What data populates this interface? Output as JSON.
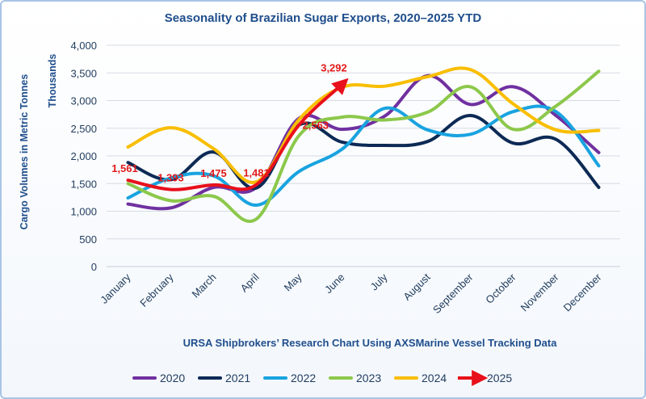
{
  "chart_data": {
    "type": "line",
    "title": "Seasonality of Brazilian Sugar Exports, 2020–2025 YTD",
    "xlabel": "URSA Shipbrokers’ Research Chart Using AXSMarine Vessel Tracking Data",
    "ylabel": "Cargo Volumes in Metric Tonnes",
    "yunit": "Thousands",
    "ylim": [
      0,
      4000
    ],
    "yticks": [
      "0",
      "500",
      "1,000",
      "1,500",
      "2,000",
      "2,500",
      "3,000",
      "3,500",
      "4,000"
    ],
    "grid": true,
    "legend_position": "bottom",
    "categories": [
      "January",
      "February",
      "March",
      "April",
      "May",
      "June",
      "July",
      "August",
      "September",
      "October",
      "November",
      "December"
    ],
    "series": [
      {
        "name": "2020",
        "color": "#7030a0",
        "values": [
          1130,
          1060,
          1430,
          1430,
          2680,
          2480,
          2720,
          3450,
          2930,
          3250,
          2730,
          2060
        ]
      },
      {
        "name": "2021",
        "color": "#0d2a55",
        "values": [
          1880,
          1570,
          2070,
          1420,
          2560,
          2250,
          2190,
          2260,
          2730,
          2230,
          2300,
          1430
        ]
      },
      {
        "name": "2022",
        "color": "#19a3e0",
        "values": [
          1240,
          1600,
          1640,
          1110,
          1720,
          2120,
          2860,
          2470,
          2390,
          2800,
          2800,
          1820
        ]
      },
      {
        "name": "2023",
        "color": "#8cc84b",
        "values": [
          1500,
          1190,
          1270,
          860,
          2370,
          2700,
          2650,
          2790,
          3250,
          2480,
          2900,
          3530
        ]
      },
      {
        "name": "2024",
        "color": "#f9be00",
        "values": [
          2160,
          2510,
          2130,
          1530,
          2660,
          3240,
          3260,
          3430,
          3560,
          2940,
          2470,
          2460
        ]
      },
      {
        "name": "2025",
        "color": "#e8101b",
        "values": [
          1561,
          1393,
          1475,
          1481,
          2563,
          3292,
          null,
          null,
          null,
          null,
          null,
          null
        ],
        "labels": [
          "1,561",
          "1,393",
          "1,475",
          "1,481",
          "2,563",
          "3,292"
        ]
      }
    ]
  }
}
